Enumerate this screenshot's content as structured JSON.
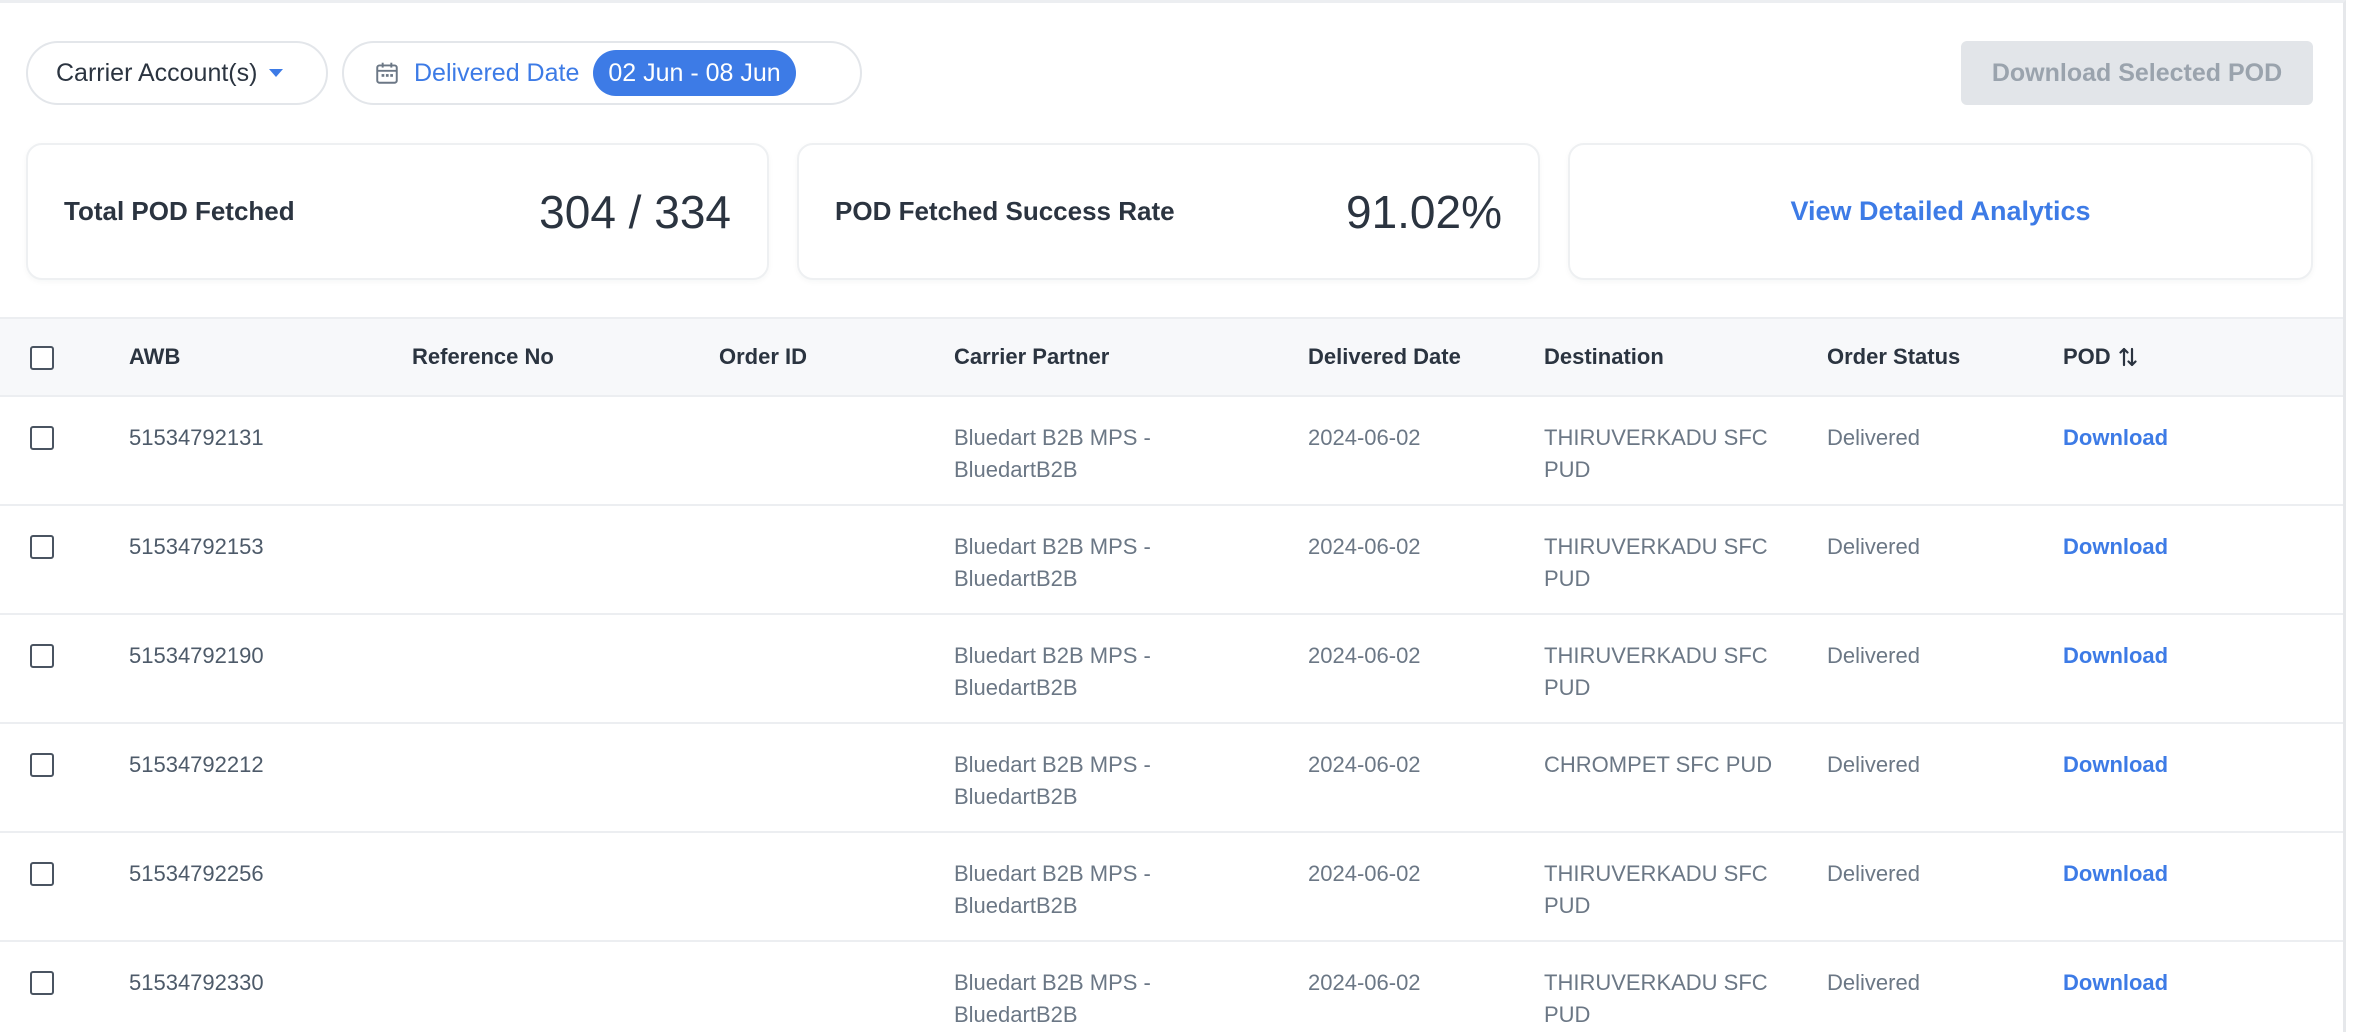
{
  "filters": {
    "carrier_label": "Carrier Account(s)",
    "date_label": "Delivered Date",
    "date_range": "02 Jun - 08 Jun"
  },
  "actions": {
    "download_selected": "Download Selected POD"
  },
  "stats": {
    "total_label": "Total POD Fetched",
    "total_value": "304 / 334",
    "rate_label": "POD Fetched Success Rate",
    "rate_value": "91.02%",
    "analytics_link": "View Detailed Analytics"
  },
  "table": {
    "headers": {
      "awb": "AWB",
      "reference": "Reference No",
      "order_id": "Order ID",
      "carrier": "Carrier Partner",
      "delivered_date": "Delivered Date",
      "destination": "Destination",
      "status": "Order Status",
      "pod": "POD"
    },
    "rows": [
      {
        "awb": "51534792131",
        "reference": "",
        "order_id": "",
        "carrier": "Bluedart B2B MPS - BluedartB2B",
        "delivered_date": "2024-06-02",
        "destination": "THIRUVERKADU SFC PUD",
        "status": "Delivered",
        "pod": "Download"
      },
      {
        "awb": "51534792153",
        "reference": "",
        "order_id": "",
        "carrier": "Bluedart B2B MPS - BluedartB2B",
        "delivered_date": "2024-06-02",
        "destination": "THIRUVERKADU SFC PUD",
        "status": "Delivered",
        "pod": "Download"
      },
      {
        "awb": "51534792190",
        "reference": "",
        "order_id": "",
        "carrier": "Bluedart B2B MPS - BluedartB2B",
        "delivered_date": "2024-06-02",
        "destination": "THIRUVERKADU SFC PUD",
        "status": "Delivered",
        "pod": "Download"
      },
      {
        "awb": "51534792212",
        "reference": "",
        "order_id": "",
        "carrier": "Bluedart B2B MPS - BluedartB2B",
        "delivered_date": "2024-06-02",
        "destination": "CHROMPET SFC PUD",
        "status": "Delivered",
        "pod": "Download"
      },
      {
        "awb": "51534792256",
        "reference": "",
        "order_id": "",
        "carrier": "Bluedart B2B MPS - BluedartB2B",
        "delivered_date": "2024-06-02",
        "destination": "THIRUVERKADU SFC PUD",
        "status": "Delivered",
        "pod": "Download"
      },
      {
        "awb": "51534792330",
        "reference": "",
        "order_id": "",
        "carrier": "Bluedart B2B MPS - BluedartB2B",
        "delivered_date": "2024-06-02",
        "destination": "THIRUVERKADU SFC PUD",
        "status": "Delivered",
        "pod": "Download"
      }
    ]
  },
  "icons": {
    "date": "calendar-icon",
    "carrier_dropdown": "caret-down-icon",
    "pod_sort": "sort-icon"
  },
  "colors": {
    "accent": "#3d7be6",
    "text": "#2b3440",
    "muted": "#6b7785",
    "disabled_bg": "#e2e5e9"
  }
}
